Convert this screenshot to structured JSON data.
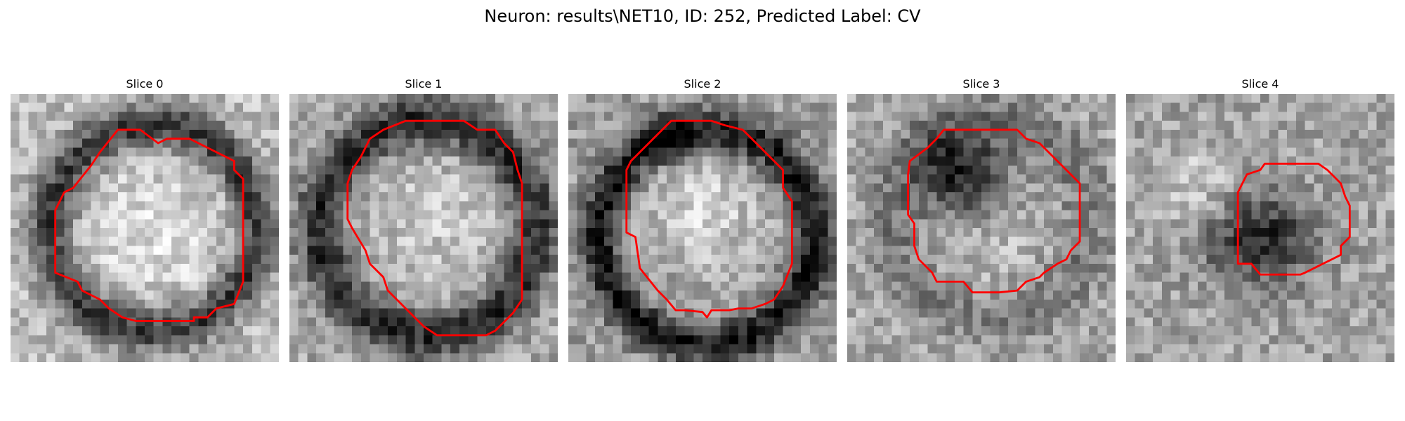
{
  "figure": {
    "title": "Neuron: results\\NET10, ID: 252, Predicted Label: CV"
  },
  "slices": [
    {
      "title": "Slice 0"
    },
    {
      "title": "Slice 1"
    },
    {
      "title": "Slice 2"
    },
    {
      "title": "Slice 3"
    },
    {
      "title": "Slice 4"
    }
  ],
  "colors": {
    "contour": "#ff0000",
    "colormap": "gray"
  }
}
